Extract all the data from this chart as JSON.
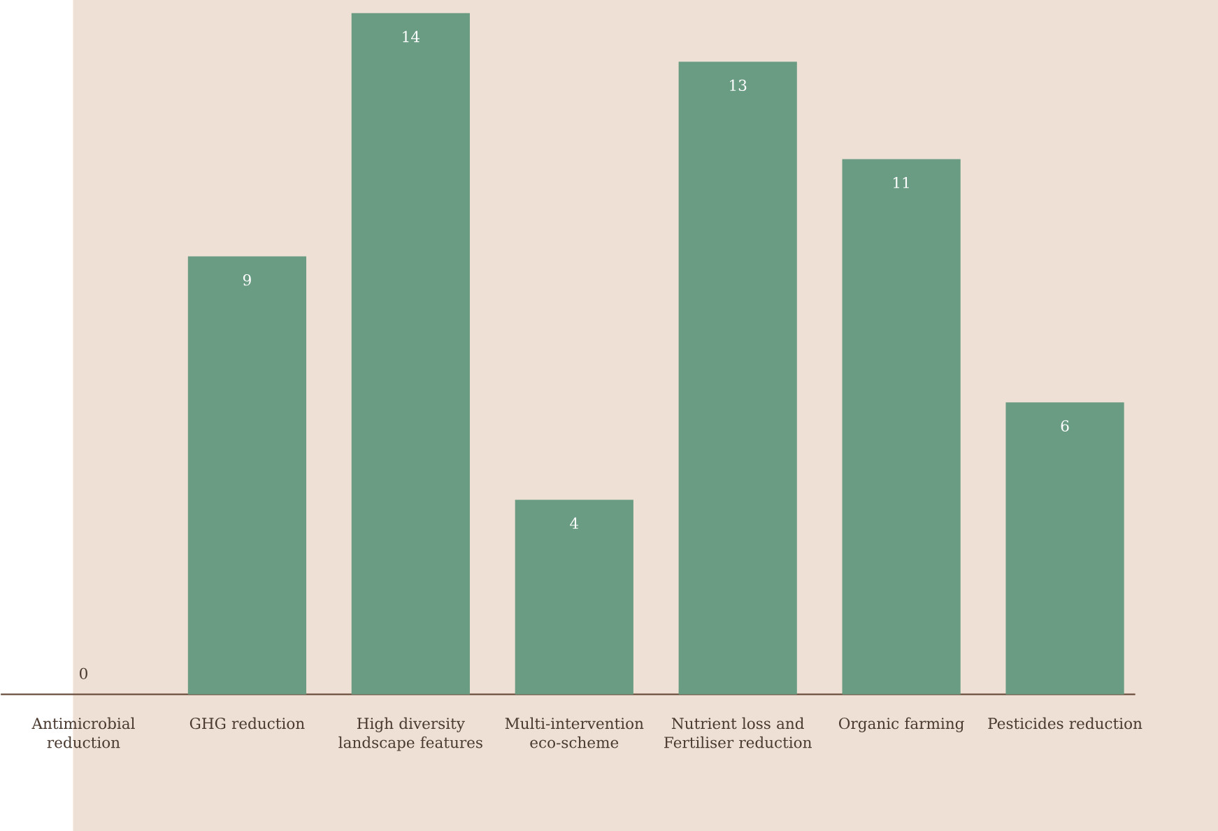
{
  "chart_data": {
    "type": "bar",
    "categories": [
      "Antimicrobial reduction",
      "GHG reduction",
      "High diversity landscape features",
      "Multi-intervention eco-scheme",
      "Nutrient loss and Fertiliser reduction",
      "Organic farming",
      "Pesticides reduction"
    ],
    "values": [
      0,
      9,
      14,
      4,
      13,
      11,
      6
    ],
    "color": "#6a9c83",
    "data_labels": true
  }
}
